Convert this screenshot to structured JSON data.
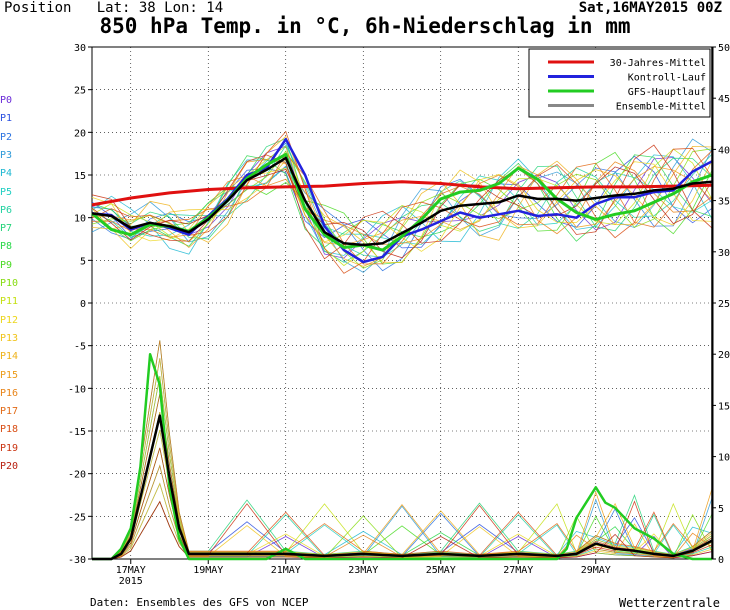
{
  "header": {
    "position": "Position   Lat: 38 Lon: 14",
    "date": "Sat,16MAY2015 00Z",
    "title": "850 hPa Temp. in °C, 6h-Niederschlag in mm"
  },
  "footer": {
    "source": "Daten: Ensembles des GFS von NCEP",
    "brand": "Wetterzentrale"
  },
  "members": [
    {
      "label": "P0",
      "color": "#6a2bd8"
    },
    {
      "label": "P1",
      "color": "#2a4fe0"
    },
    {
      "label": "P2",
      "color": "#2a72e0"
    },
    {
      "label": "P3",
      "color": "#2e9ad8"
    },
    {
      "label": "P4",
      "color": "#1eb8d2"
    },
    {
      "label": "P5",
      "color": "#20cfc2"
    },
    {
      "label": "P6",
      "color": "#20d2a0"
    },
    {
      "label": "P7",
      "color": "#22d478"
    },
    {
      "label": "P8",
      "color": "#2ad84a"
    },
    {
      "label": "P9",
      "color": "#4ada24"
    },
    {
      "label": "P10",
      "color": "#86dc10"
    },
    {
      "label": "P11",
      "color": "#c4e010"
    },
    {
      "label": "P12",
      "color": "#ecd61c"
    },
    {
      "label": "P13",
      "color": "#f0c41c"
    },
    {
      "label": "P14",
      "color": "#eeb21a"
    },
    {
      "label": "P15",
      "color": "#ec9c18"
    },
    {
      "label": "P16",
      "color": "#e88418"
    },
    {
      "label": "P17",
      "color": "#e26a16"
    },
    {
      "label": "P18",
      "color": "#d84e14"
    },
    {
      "label": "P19",
      "color": "#ca3412"
    },
    {
      "label": "P20",
      "color": "#b82010"
    }
  ],
  "chart_data": {
    "type": "line",
    "title": "850 hPa Temp. in °C, 6h-Niederschlag in mm",
    "x_unit": "days since 16MAY2015 00Z",
    "xlim": [
      0,
      16
    ],
    "x_ticks": [
      {
        "x": 1,
        "label": "17MAY",
        "sub": "2015"
      },
      {
        "x": 3,
        "label": "19MAY"
      },
      {
        "x": 5,
        "label": "21MAY"
      },
      {
        "x": 7,
        "label": "23MAY"
      },
      {
        "x": 9,
        "label": "25MAY"
      },
      {
        "x": 11,
        "label": "27MAY"
      },
      {
        "x": 13,
        "label": "29MAY"
      }
    ],
    "y_left": {
      "label": "°C",
      "lim": [
        -30,
        30
      ],
      "ticks": [
        30,
        25,
        20,
        15,
        10,
        5,
        0,
        -5,
        -10,
        -15,
        -20,
        -25,
        -30
      ]
    },
    "y_right": {
      "label": "mm",
      "lim": [
        0,
        50
      ],
      "ticks": [
        50,
        45,
        40,
        35,
        30,
        25,
        20,
        15,
        10,
        5,
        0
      ]
    },
    "legend": {
      "position": "top-right",
      "entries": [
        {
          "label": "30-Jahres-Mittel",
          "color": "#e01010"
        },
        {
          "label": "Kontroll-Lauf",
          "color": "#2222dd"
        },
        {
          "label": "GFS-Hauptlauf",
          "color": "#22cc22"
        },
        {
          "label": "Ensemble-Mittel",
          "color": "#888888"
        }
      ]
    },
    "series": [
      {
        "name": "30-Jahres-Mittel",
        "axis": "left",
        "color": "#e01010",
        "width": 3,
        "x": [
          0,
          1,
          2,
          3,
          4,
          5,
          6,
          7,
          8,
          9,
          10,
          11,
          12,
          13,
          14,
          15,
          16
        ],
        "values": [
          11.5,
          12.3,
          12.9,
          13.3,
          13.5,
          13.6,
          13.7,
          14.0,
          14.2,
          14.0,
          13.6,
          13.4,
          13.5,
          13.6,
          13.6,
          13.7,
          13.8
        ]
      },
      {
        "name": "Kontroll-Lauf",
        "axis": "left",
        "color": "#2222dd",
        "width": 2.5,
        "x": [
          0,
          0.5,
          1,
          1.5,
          2,
          2.5,
          3,
          3.5,
          4,
          4.5,
          5,
          5.5,
          6,
          6.5,
          7,
          7.5,
          8,
          8.5,
          9,
          9.5,
          10,
          10.5,
          11,
          11.5,
          12,
          12.5,
          13,
          13.5,
          14,
          14.5,
          15,
          15.5,
          16
        ],
        "values": [
          10.5,
          10.3,
          8.6,
          9.4,
          8.8,
          8.0,
          10.2,
          12.2,
          15.0,
          15.8,
          19.2,
          15.0,
          9.0,
          6.2,
          4.8,
          5.4,
          7.8,
          8.6,
          9.6,
          10.6,
          10.0,
          10.4,
          10.8,
          10.2,
          10.4,
          10.0,
          11.6,
          12.4,
          12.4,
          13.0,
          13.2,
          15.4,
          16.6
        ]
      },
      {
        "name": "GFS-Hauptlauf",
        "axis": "left",
        "color": "#22cc22",
        "width": 3,
        "x": [
          0,
          0.5,
          1,
          1.5,
          2,
          2.5,
          3,
          3.5,
          4,
          4.5,
          5,
          5.5,
          6,
          6.5,
          7,
          7.5,
          8,
          8.5,
          9,
          9.5,
          10,
          10.5,
          11,
          11.5,
          12,
          12.5,
          13,
          13.5,
          14,
          14.5,
          15,
          15.5,
          16
        ],
        "values": [
          10.5,
          8.6,
          8.0,
          9.2,
          9.0,
          8.4,
          10.0,
          12.0,
          14.6,
          16.2,
          17.4,
          11.0,
          8.0,
          6.5,
          6.8,
          6.2,
          7.8,
          9.8,
          12.2,
          13.0,
          13.2,
          14.0,
          15.8,
          14.5,
          12.2,
          10.6,
          9.8,
          10.4,
          10.8,
          11.8,
          12.8,
          14.2,
          15.0
        ]
      },
      {
        "name": "Ensemble-Mittel",
        "axis": "left",
        "color": "#000000",
        "width": 2.5,
        "x": [
          0,
          0.5,
          1,
          1.5,
          2,
          2.5,
          3,
          3.5,
          4,
          4.5,
          5,
          5.5,
          6,
          6.5,
          7,
          7.5,
          8,
          8.5,
          9,
          9.5,
          10,
          10.5,
          11,
          11.5,
          12,
          12.5,
          13,
          13.5,
          14,
          14.5,
          15,
          15.5,
          16
        ],
        "values": [
          10.5,
          10.2,
          8.8,
          9.4,
          9.0,
          8.3,
          9.8,
          12.0,
          14.4,
          15.6,
          17.0,
          12.0,
          8.3,
          7.0,
          6.8,
          7.0,
          8.2,
          9.4,
          10.8,
          11.4,
          11.6,
          11.8,
          12.6,
          12.2,
          12.2,
          12.0,
          12.3,
          12.6,
          12.8,
          13.2,
          13.4,
          14.0,
          14.2
        ]
      },
      {
        "name": "GFS-Hauptlauf Niederschlag",
        "axis": "right",
        "color": "#22cc22",
        "width": 2.5,
        "x": [
          0,
          0.5,
          0.75,
          1,
          1.25,
          1.5,
          1.75,
          2,
          2.25,
          2.5,
          3,
          4,
          4.5,
          5,
          5.5,
          6,
          7,
          8,
          9,
          10,
          11,
          11.5,
          12,
          12.25,
          12.5,
          13,
          13.25,
          13.5,
          14,
          14.5,
          15,
          15.5,
          16
        ],
        "values": [
          0,
          0,
          1.0,
          3.0,
          9.0,
          20.0,
          17.0,
          7.0,
          2.0,
          0,
          0,
          0,
          0,
          1.0,
          0,
          0,
          0,
          0,
          0,
          0,
          0,
          0,
          0,
          1.0,
          4.0,
          7.0,
          5.5,
          5.0,
          3.0,
          2.0,
          0.5,
          0,
          0
        ]
      },
      {
        "name": "Ensemble-Mittel Niederschlag",
        "axis": "right",
        "color": "#000000",
        "width": 2.5,
        "x": [
          0,
          0.5,
          0.75,
          1,
          1.25,
          1.5,
          1.75,
          2,
          2.25,
          2.5,
          3,
          4,
          5,
          6,
          7,
          8,
          9,
          10,
          11,
          12,
          12.5,
          13,
          13.5,
          14,
          14.5,
          15,
          15.5,
          16
        ],
        "values": [
          0,
          0,
          0.5,
          2.0,
          6.0,
          10.0,
          14.0,
          8.0,
          3.0,
          0.5,
          0.5,
          0.5,
          0.5,
          0.3,
          0.5,
          0.3,
          0.5,
          0.3,
          0.5,
          0.3,
          0.5,
          1.5,
          1.0,
          0.8,
          0.5,
          0.3,
          0.8,
          1.8
        ]
      }
    ]
  }
}
